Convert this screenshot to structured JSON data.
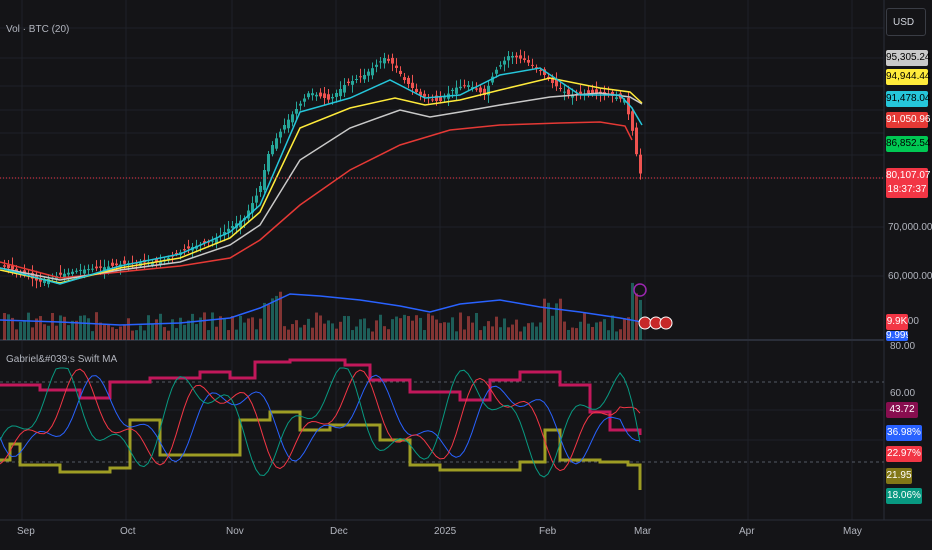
{
  "header": {
    "currency_button": "USD",
    "volume_label": "Vol · BTC (20)"
  },
  "indicator": {
    "label": "Gabriel&#039;s Swift MA"
  },
  "price_tags": [
    {
      "label": "95,305.24",
      "bg": "#c9c9c9",
      "fg": "#000000"
    },
    {
      "label": "94,944.44",
      "bg": "#ffeb3b",
      "fg": "#000000"
    },
    {
      "label": "91,478.04",
      "bg": "#26c6da",
      "fg": "#000000"
    },
    {
      "label": "91,050.96",
      "bg": "#e53935",
      "fg": "#ffffff"
    },
    {
      "label": "86,852.54",
      "bg": "#00c853",
      "fg": "#000000"
    }
  ],
  "last_price": {
    "price": "80,107.07",
    "countdown": "18:37:37",
    "bg": "#f23645"
  },
  "price_axis": [
    "70,000.00",
    "60,000.00",
    ".00"
  ],
  "volume_tags": [
    {
      "label": "9.9K",
      "bg": "#f23645",
      "fg": "#ffffff"
    },
    {
      "label": "9.999",
      "bg": "#2962ff",
      "fg": "#ffffff"
    }
  ],
  "indicator_axis": [
    "80.00",
    "60.00"
  ],
  "indicator_tags": [
    {
      "label": "43.72",
      "bg": "#880e4f",
      "fg": "#ffffff"
    },
    {
      "label": "36.98%",
      "bg": "#2962ff",
      "fg": "#ffffff"
    },
    {
      "label": "22.97%",
      "bg": "#f23645",
      "fg": "#ffffff"
    },
    {
      "label": "21.95",
      "bg": "#827717",
      "fg": "#ffffff"
    },
    {
      "label": "18.06%",
      "bg": "#089981",
      "fg": "#ffffff"
    }
  ],
  "months": [
    "Sep",
    "Oct",
    "Nov",
    "Dec",
    "2025",
    "Feb",
    "Mar",
    "Apr",
    "May"
  ],
  "colors": {
    "bg": "#141417",
    "up": "#26a69a",
    "down": "#ef5350",
    "ema_gray": "#c9c9c9",
    "ema_yellow": "#ffeb3b",
    "ema_cyan": "#26c6da",
    "ema_red": "#e53935",
    "vol_ma": "#2962ff",
    "ind_magenta": "#c2185b",
    "ind_olive": "#9e9d24",
    "ind_blue": "#2962ff",
    "ind_red": "#f23645",
    "ind_green": "#089981"
  }
}
